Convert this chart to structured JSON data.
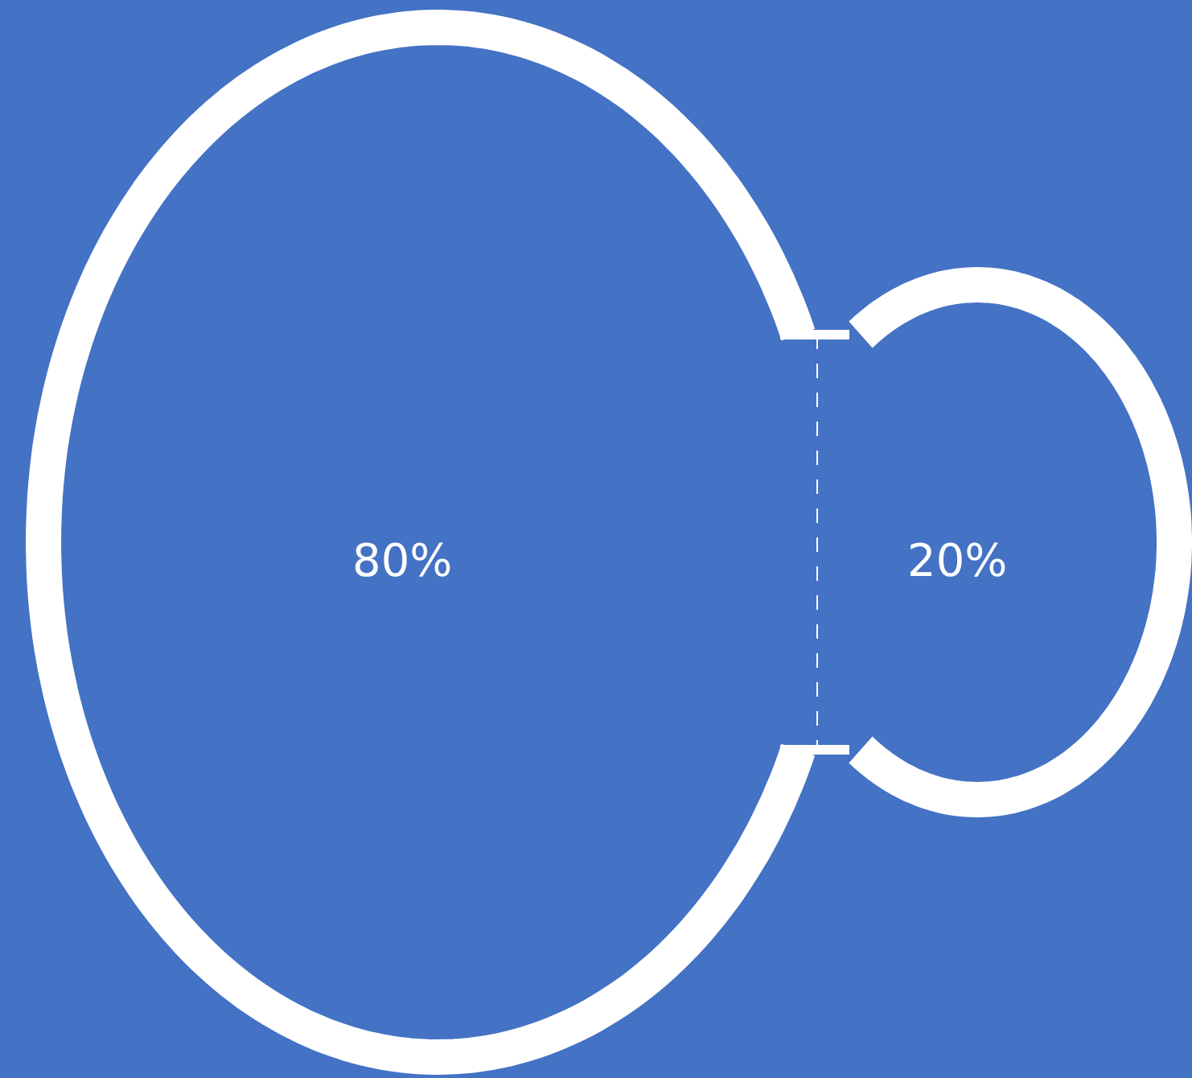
{
  "chart_data": {
    "type": "other",
    "categories": [
      null,
      null
    ],
    "values": [
      80,
      20
    ],
    "value_labels": [
      "80%",
      "20%"
    ],
    "colors": [
      "#4472c4",
      "#4472c4"
    ]
  }
}
